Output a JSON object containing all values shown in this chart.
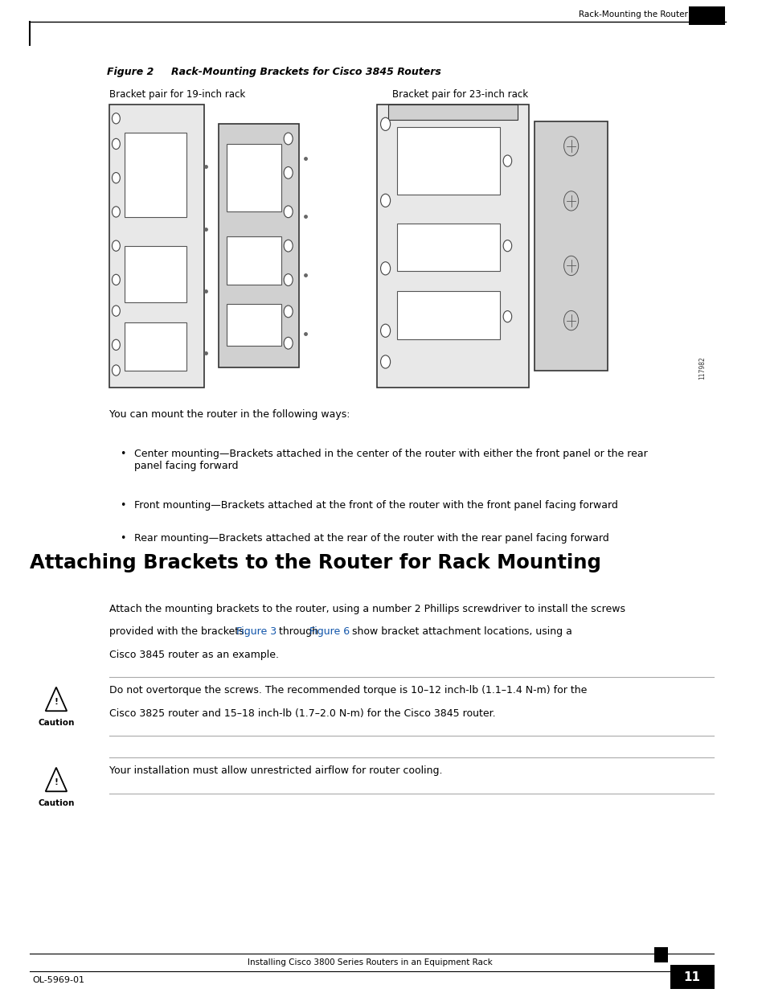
{
  "page_bg": "#ffffff",
  "header_text": "Rack-Mounting the Router",
  "figure_label": "Figure 2",
  "figure_title": "Rack-Mounting Brackets for Cisco 3845 Routers",
  "label_19": "Bracket pair for 19-inch rack",
  "label_23": "Bracket pair for 23-inch rack",
  "body_intro": "You can mount the router in the following ways:",
  "bullet1": "Center mounting—Brackets attached in the center of the router with either the front panel or the rear\npanel facing forward",
  "bullet2": "Front mounting—Brackets attached at the front of the router with the front panel facing forward",
  "bullet3": "Rear mounting—Brackets attached at the rear of the router with the rear panel facing forward",
  "section_title": "Attaching Brackets to the Router for Rack Mounting",
  "para_line1": "Attach the mounting brackets to the router, using a number 2 Phillips screwdriver to install the screws",
  "para_line2a": "provided with the brackets. ",
  "para_line2b": "Figure 3",
  "para_line2c": " through ",
  "para_line2d": "Figure 6",
  "para_line2e": " show bracket attachment locations, using a",
  "para_line3": "Cisco 3845 router as an example.",
  "caution1_title": "Caution",
  "caution1_text_l1": "Do not overtorque the screws. The recommended torque is 10–12 inch-lb (1.1–1.4 N-m) for the",
  "caution1_text_l2": "Cisco 3825 router and 15–18 inch-lb (1.7–2.0 N-m) for the Cisco 3845 router.",
  "caution2_title": "Caution",
  "caution2_text": "Your installation must allow unrestricted airflow for router cooling.",
  "footer_center": "Installing Cisco 3800 Series Routers in an Equipment Rack",
  "footer_left": "OL-5969-01",
  "footer_page": "11",
  "image_number": "117982",
  "link_color": "#1155aa",
  "text_color": "#000000",
  "gray_line_color": "#aaaaaa",
  "black": "#000000",
  "white": "#ffffff",
  "light_gray": "#e8e8e8",
  "mid_gray": "#d0d0d0",
  "dark_gray": "#555555"
}
